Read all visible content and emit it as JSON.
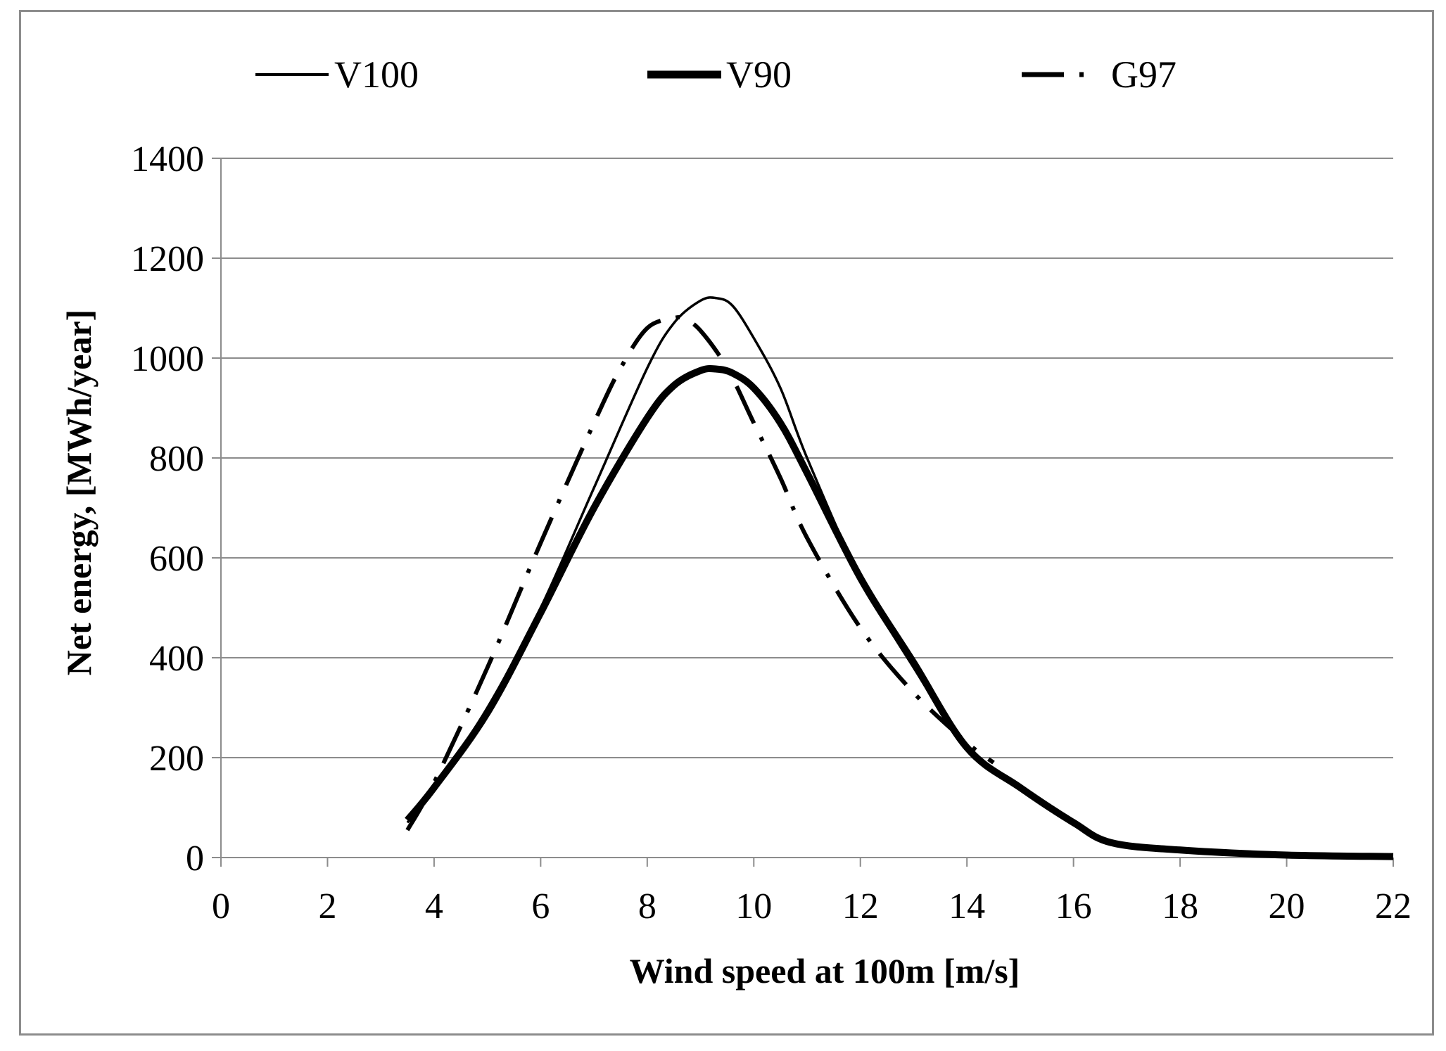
{
  "chart_data": {
    "type": "line",
    "title": "",
    "xlabel": "Wind speed at 100m [m/s]",
    "ylabel": "Net energy, [MWh/year]",
    "xlim": [
      0,
      22
    ],
    "ylim": [
      0,
      1400
    ],
    "xticks": [
      0,
      2,
      4,
      6,
      8,
      10,
      12,
      14,
      16,
      18,
      20,
      22
    ],
    "yticks": [
      0,
      200,
      400,
      600,
      800,
      1000,
      1200,
      1400
    ],
    "grid": "horizontal",
    "legend_position": "top",
    "series": [
      {
        "name": "V100",
        "style": "thin-solid",
        "x": [
          3.5,
          4,
          5,
          6,
          7,
          8,
          8.5,
          9,
          9.3,
          9.6,
          10,
          10.5,
          11,
          12,
          13,
          14,
          15,
          16,
          16.7,
          18,
          20,
          22
        ],
        "y": [
          70,
          140,
          300,
          500,
          740,
          980,
          1070,
          1115,
          1120,
          1105,
          1040,
          940,
          800,
          560,
          380,
          220,
          140,
          70,
          30,
          15,
          5,
          2
        ]
      },
      {
        "name": "V90",
        "style": "thick-solid",
        "x": [
          3.5,
          4,
          5,
          6,
          7,
          8,
          8.5,
          9,
          9.3,
          9.6,
          10,
          10.5,
          11,
          12,
          13,
          14,
          15,
          16,
          16.7,
          18,
          20,
          22
        ],
        "y": [
          75,
          140,
          290,
          490,
          700,
          880,
          945,
          975,
          978,
          970,
          940,
          870,
          770,
          560,
          390,
          220,
          140,
          70,
          30,
          15,
          5,
          2
        ]
      },
      {
        "name": "G97",
        "style": "dash-dot",
        "x": [
          3.5,
          4,
          5,
          6,
          7,
          7.5,
          8,
          8.5,
          8.7,
          9,
          9.5,
          10,
          10.5,
          11,
          12,
          13,
          14,
          14.5
        ],
        "y": [
          55,
          150,
          380,
          630,
          870,
          980,
          1060,
          1080,
          1078,
          1055,
          980,
          870,
          760,
          640,
          460,
          330,
          230,
          190
        ]
      }
    ]
  }
}
